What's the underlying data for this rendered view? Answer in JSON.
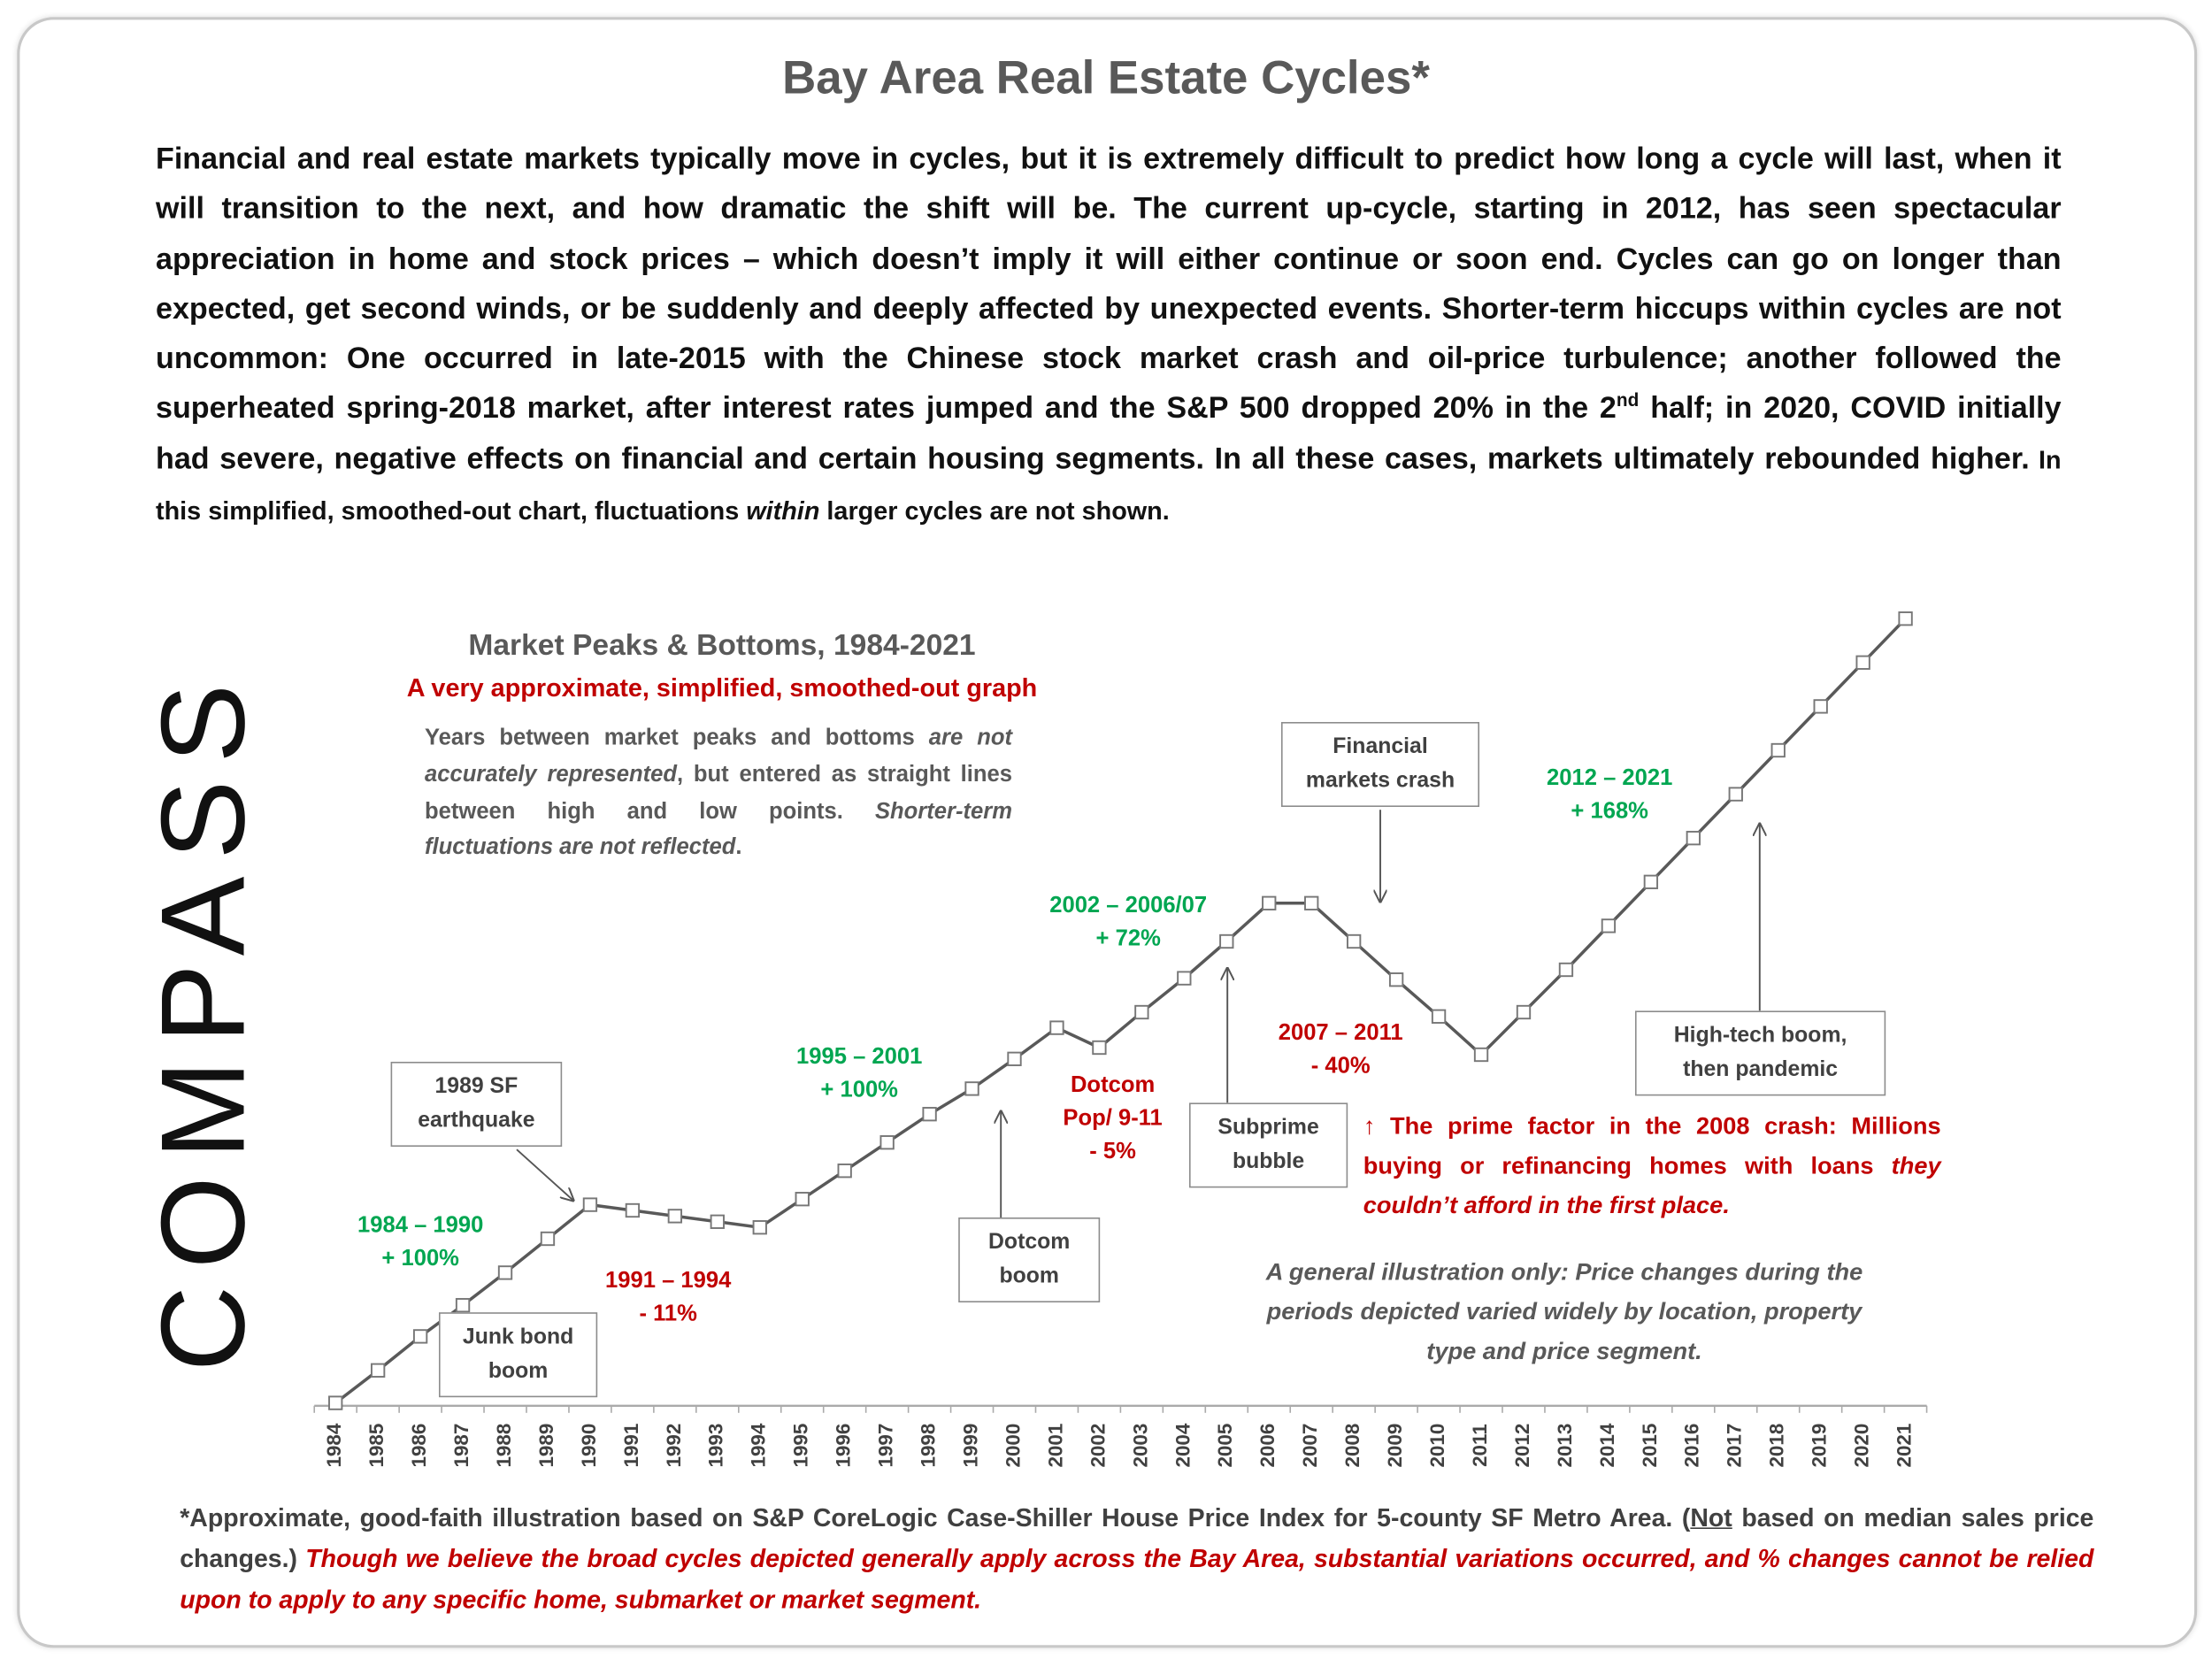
{
  "header": {
    "title": "Bay Area Real Estate Cycles*"
  },
  "intro": [
    "Financial and real estate markets typically move in cycles, but it is extremely difficult to predict how long a cycle will last, when it will transition to the next, and how dramatic the shift will be. The current up-cycle, starting in 2012, has seen spectacular appreciation in home and stock prices – which doesn’t imply it will either continue or soon end. Cycles can go on longer than expected, get second winds, or be suddenly and deeply affected by unexpected events. Shorter-term hiccups within cycles are not uncommon: One occurred in late-2015 with the Chinese stock market crash and oil-price turbulence; another followed the superheated spring-2018 market, after interest rates jumped and the S&P 500 dropped 20% in the 2",
    "nd",
    " half; in 2020, COVID initially had severe, negative effects on financial and certain housing segments. In all these cases, markets ultimately rebounded higher.",
    " In this simplified, smoothed-out chart, fluctuations ",
    "within",
    " larger cycles are not shown."
  ],
  "logo": "COMPASS",
  "chart_data": {
    "type": "line",
    "title": "Market Peaks & Bottoms, 1984-2021",
    "subtitle": "A very approximate, simplified, smoothed-out graph",
    "note": [
      "Years between market peaks and bottoms ",
      "are not accurately represented",
      ", but entered as straight lines between high and low points. ",
      "Shorter-term fluctuations are not reflected",
      "."
    ],
    "categories": [
      "1984",
      "1985",
      "1986",
      "1987",
      "1988",
      "1989",
      "1990",
      "1991",
      "1992",
      "1993",
      "1994",
      "1995",
      "1996",
      "1997",
      "1998",
      "1999",
      "2000",
      "2001",
      "2002",
      "2003",
      "2004",
      "2005",
      "2006",
      "2007",
      "2008",
      "2009",
      "2010",
      "2011",
      "2012",
      "2013",
      "2014",
      "2015",
      "2016",
      "2017",
      "2018",
      "2019",
      "2020",
      "2021"
    ],
    "values": [
      0,
      23,
      47,
      69,
      92,
      116,
      140,
      136,
      132,
      128,
      124,
      144,
      164,
      184,
      204,
      222,
      243,
      265,
      251,
      276,
      300,
      326,
      353,
      353,
      326,
      299,
      273,
      246,
      276,
      306,
      337,
      368,
      399,
      430,
      461,
      492,
      523,
      554
    ],
    "color": "#595959",
    "ylim": [
      0,
      554
    ],
    "periods": [
      [
        "1984 – 1990",
        "+ 100%"
      ],
      [
        "1991 – 1994",
        "- 11%"
      ],
      [
        "1995 – 2001",
        "+ 100%"
      ],
      [
        "Dotcom",
        "Pop/ 9-11",
        "- 5%"
      ],
      [
        "2002 – 2006/07",
        "+ 72%"
      ],
      [
        "2007 – 2011",
        "- 40%"
      ],
      [
        "2012 – 2021",
        "+ 168%"
      ]
    ],
    "events": [
      [
        "1989 SF",
        "earthquake"
      ],
      [
        "Junk bond",
        "boom"
      ],
      [
        "Dotcom",
        "boom"
      ],
      [
        "Subprime",
        "bubble"
      ],
      [
        "Financial",
        "markets crash"
      ],
      [
        "High-tech boom,",
        "then pandemic"
      ]
    ],
    "red_note": [
      "↑ The prime factor in the 2008 crash: Millions buying or refinancing homes with loans ",
      "they couldn’t afford in the first place."
    ],
    "gray_note": "A general illustration only: Price changes during the periods depicted varied widely by location, property type and price segment."
  },
  "footnote": [
    "*Approximate, good-faith illustration based on S&P CoreLogic Case-Shiller House Price Index for 5-county SF Metro Area. (",
    "Not",
    " based on median sales price changes.) ",
    "Though we believe the broad cycles depicted generally apply across the Bay Area, substantial variations occurred, and % changes cannot be relied upon to apply to any specific home, submarket or market segment."
  ]
}
